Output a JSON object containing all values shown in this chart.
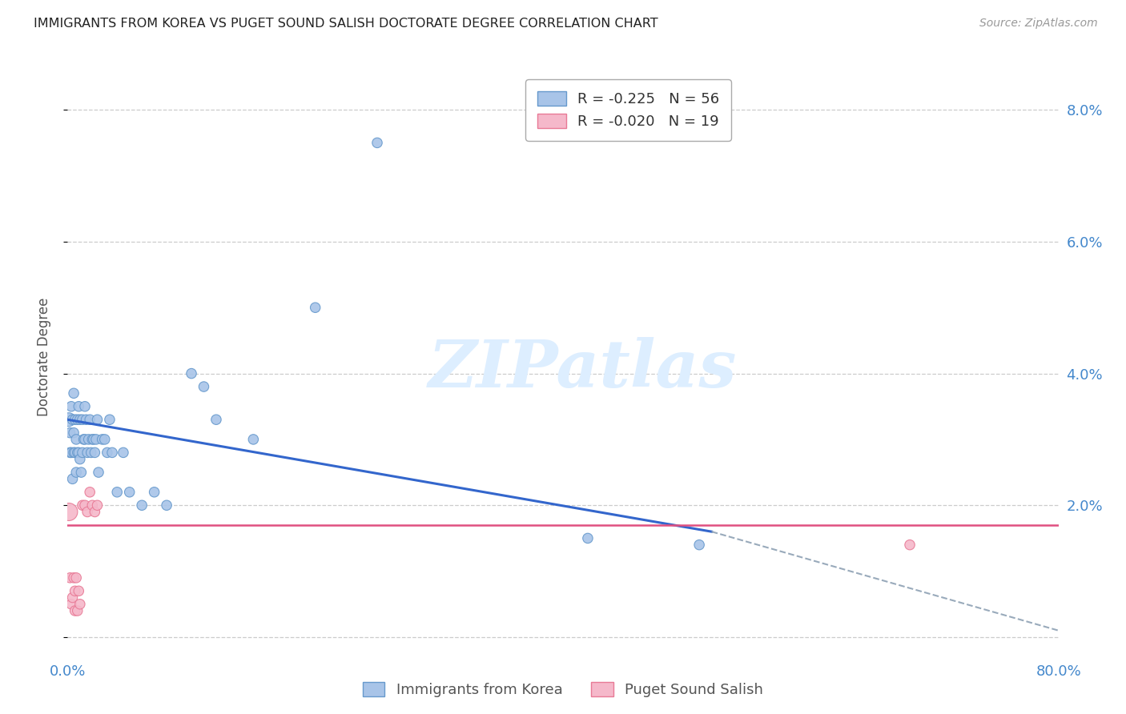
{
  "title": "IMMIGRANTS FROM KOREA VS PUGET SOUND SALISH DOCTORATE DEGREE CORRELATION CHART",
  "source": "Source: ZipAtlas.com",
  "ylabel": "Doctorate Degree",
  "xlim": [
    0.0,
    0.8
  ],
  "ylim": [
    -0.003,
    0.088
  ],
  "plot_ylim": [
    0.0,
    0.085
  ],
  "yticks": [
    0.0,
    0.02,
    0.04,
    0.06,
    0.08
  ],
  "ytick_labels": [
    "",
    "2.0%",
    "4.0%",
    "6.0%",
    "8.0%"
  ],
  "xticks": [
    0.0,
    0.2,
    0.4,
    0.6,
    0.8
  ],
  "xtick_labels": [
    "0.0%",
    "",
    "",
    "",
    "80.0%"
  ],
  "legend1_label": "Immigrants from Korea",
  "legend2_label": "Puget Sound Salish",
  "R1": -0.225,
  "N1": 56,
  "R2": -0.02,
  "N2": 19,
  "korea_color": "#a8c4e8",
  "korea_edge": "#6699cc",
  "salish_color": "#f5b8ca",
  "salish_edge": "#e87a96",
  "trendline1_color": "#3366cc",
  "trendline2_color": "#e05080",
  "trendline_ext_color": "#99aabb",
  "background": "#ffffff",
  "grid_color": "#cccccc",
  "title_color": "#222222",
  "axis_color": "#4488cc",
  "watermark_color": "#ddeeff",
  "korea_x": [
    0.001,
    0.002,
    0.002,
    0.003,
    0.003,
    0.004,
    0.004,
    0.005,
    0.005,
    0.005,
    0.006,
    0.006,
    0.007,
    0.007,
    0.008,
    0.008,
    0.009,
    0.009,
    0.01,
    0.01,
    0.011,
    0.012,
    0.012,
    0.013,
    0.014,
    0.014,
    0.015,
    0.016,
    0.017,
    0.018,
    0.019,
    0.02,
    0.021,
    0.022,
    0.023,
    0.024,
    0.025,
    0.028,
    0.03,
    0.032,
    0.034,
    0.036,
    0.04,
    0.045,
    0.05,
    0.06,
    0.07,
    0.08,
    0.1,
    0.11,
    0.12,
    0.15,
    0.2,
    0.25,
    0.42,
    0.51
  ],
  "korea_y": [
    0.033,
    0.031,
    0.028,
    0.035,
    0.028,
    0.033,
    0.024,
    0.037,
    0.031,
    0.028,
    0.033,
    0.028,
    0.03,
    0.025,
    0.033,
    0.028,
    0.035,
    0.028,
    0.033,
    0.027,
    0.025,
    0.033,
    0.028,
    0.03,
    0.035,
    0.03,
    0.033,
    0.028,
    0.03,
    0.033,
    0.028,
    0.03,
    0.03,
    0.028,
    0.03,
    0.033,
    0.025,
    0.03,
    0.03,
    0.028,
    0.033,
    0.028,
    0.022,
    0.028,
    0.022,
    0.02,
    0.022,
    0.02,
    0.04,
    0.038,
    0.033,
    0.03,
    0.05,
    0.075,
    0.015,
    0.014
  ],
  "salish_x": [
    0.001,
    0.002,
    0.003,
    0.004,
    0.005,
    0.006,
    0.006,
    0.007,
    0.008,
    0.009,
    0.01,
    0.012,
    0.014,
    0.016,
    0.018,
    0.02,
    0.022,
    0.024,
    0.68
  ],
  "salish_y": [
    0.019,
    0.009,
    0.005,
    0.006,
    0.009,
    0.007,
    0.004,
    0.009,
    0.004,
    0.007,
    0.005,
    0.02,
    0.02,
    0.019,
    0.022,
    0.02,
    0.019,
    0.02,
    0.014
  ],
  "korea_sizes": [
    150,
    80,
    80,
    80,
    80,
    80,
    80,
    80,
    80,
    80,
    80,
    80,
    80,
    80,
    80,
    80,
    80,
    80,
    80,
    80,
    80,
    80,
    80,
    80,
    80,
    80,
    80,
    80,
    80,
    80,
    80,
    80,
    80,
    80,
    80,
    80,
    80,
    80,
    80,
    80,
    80,
    80,
    80,
    80,
    80,
    80,
    80,
    80,
    80,
    80,
    80,
    80,
    80,
    80,
    80,
    80
  ],
  "salish_sizes": [
    250,
    80,
    80,
    80,
    80,
    80,
    80,
    80,
    80,
    80,
    80,
    80,
    80,
    80,
    80,
    80,
    80,
    80,
    80
  ],
  "trend1_x0": 0.0,
  "trend1_x1": 0.52,
  "trend1_y0": 0.033,
  "trend1_y1": 0.016,
  "trend_ext_x0": 0.52,
  "trend_ext_x1": 0.8,
  "trend_ext_y0": 0.016,
  "trend_ext_y1": 0.001,
  "trend2_x0": 0.0,
  "trend2_x1": 0.8,
  "trend2_y0": 0.017,
  "trend2_y1": 0.017
}
